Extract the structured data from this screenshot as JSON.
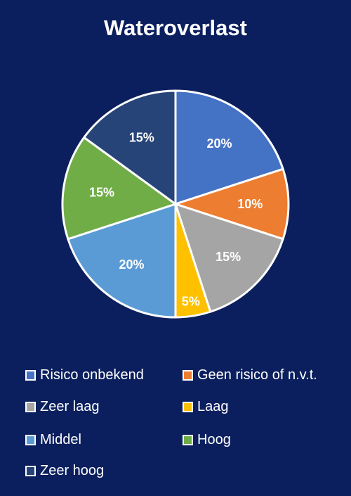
{
  "title": "Wateroverlast",
  "chart_data": {
    "type": "pie",
    "title": "Wateroverlast",
    "categories": [
      "Risico onbekend",
      "Geen risico of n.v.t.",
      "Zeer laag",
      "Laag",
      "Middel",
      "Hoog",
      "Zeer hoog"
    ],
    "values": [
      20,
      10,
      15,
      5,
      20,
      15,
      15
    ],
    "labels": [
      "20%",
      "10%",
      "15%",
      "5%",
      "20%",
      "15%",
      "15%"
    ],
    "colors": [
      "#4472c4",
      "#ed7d31",
      "#a5a5a5",
      "#ffc000",
      "#5b9bd5",
      "#70ad47",
      "#264478"
    ],
    "legend_position": "bottom"
  }
}
